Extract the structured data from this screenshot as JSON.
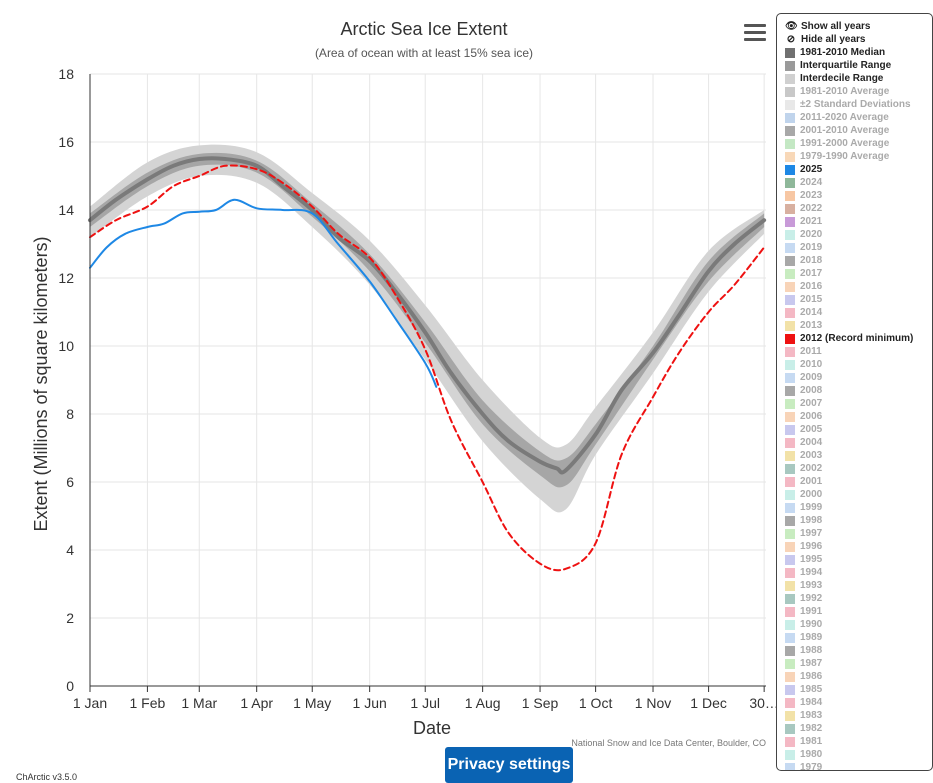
{
  "title": "Arctic Sea Ice Extent",
  "subtitle": "(Area of ocean with at least 15% sea ice)",
  "credit": "National Snow and Ice Data Center, Boulder, CO",
  "version": "ChArctic v3.5.0",
  "privacy_label": "Privacy settings",
  "menu_icon": "hamburger-menu-icon",
  "legend": {
    "show_all": "Show all years",
    "hide_all": "Hide all years",
    "items": [
      {
        "label": "1981-2010 Median",
        "color": "#707070",
        "active": true
      },
      {
        "label": "Interquartile Range",
        "color": "#9a9a9a",
        "active": true
      },
      {
        "label": "Interdecile Range",
        "color": "#d0d0d0",
        "active": true
      },
      {
        "label": "1981-2010 Average",
        "color": "#c8c8c8",
        "active": false
      },
      {
        "label": "±2 Standard Deviations",
        "color": "#e8e8e8",
        "active": false
      },
      {
        "label": "2011-2020 Average",
        "color": "#c0d4ec",
        "active": false
      },
      {
        "label": "2001-2010 Average",
        "color": "#a8a8a8",
        "active": false
      },
      {
        "label": "1991-2000 Average",
        "color": "#c4e8c4",
        "active": false
      },
      {
        "label": "1979-1990 Average",
        "color": "#f8d8b8",
        "active": false
      },
      {
        "label": "2025",
        "color": "#1e88e5",
        "active": true
      },
      {
        "label": "2024",
        "color": "#8fb89a",
        "active": false
      },
      {
        "label": "2023",
        "color": "#f7c7a3",
        "active": false
      },
      {
        "label": "2022",
        "color": "#d8b0a0",
        "active": false
      },
      {
        "label": "2021",
        "color": "#c89ad8",
        "active": false
      },
      {
        "label": "2020",
        "color": "#c8eee8",
        "active": false
      },
      {
        "label": "2019",
        "color": "#c6daf2",
        "active": false
      },
      {
        "label": "2018",
        "color": "#a8a8a8",
        "active": false
      },
      {
        "label": "2017",
        "color": "#c8ecc0",
        "active": false
      },
      {
        "label": "2016",
        "color": "#f8d4b8",
        "active": false
      },
      {
        "label": "2015",
        "color": "#c8c8ee",
        "active": false
      },
      {
        "label": "2014",
        "color": "#f4b8c4",
        "active": false
      },
      {
        "label": "2013",
        "color": "#f2e2a8",
        "active": false
      },
      {
        "label": "2012 (Record minimum)",
        "color": "#ee1111",
        "active": true
      },
      {
        "label": "2011",
        "color": "#f4b8c4",
        "active": false
      },
      {
        "label": "2010",
        "color": "#c8eee8",
        "active": false
      },
      {
        "label": "2009",
        "color": "#c6daf2",
        "active": false
      },
      {
        "label": "2008",
        "color": "#a8a8a8",
        "active": false
      },
      {
        "label": "2007",
        "color": "#c8ecc0",
        "active": false
      },
      {
        "label": "2006",
        "color": "#f8d4b8",
        "active": false
      },
      {
        "label": "2005",
        "color": "#c8c8ee",
        "active": false
      },
      {
        "label": "2004",
        "color": "#f4b8c4",
        "active": false
      },
      {
        "label": "2003",
        "color": "#f2e2a8",
        "active": false
      },
      {
        "label": "2002",
        "color": "#a8c8c0",
        "active": false
      },
      {
        "label": "2001",
        "color": "#f4b8c4",
        "active": false
      },
      {
        "label": "2000",
        "color": "#c8eee8",
        "active": false
      },
      {
        "label": "1999",
        "color": "#c6daf2",
        "active": false
      },
      {
        "label": "1998",
        "color": "#a8a8a8",
        "active": false
      },
      {
        "label": "1997",
        "color": "#c8ecc0",
        "active": false
      },
      {
        "label": "1996",
        "color": "#f8d4b8",
        "active": false
      },
      {
        "label": "1995",
        "color": "#c8c8ee",
        "active": false
      },
      {
        "label": "1994",
        "color": "#f4b8c4",
        "active": false
      },
      {
        "label": "1993",
        "color": "#f2e2a8",
        "active": false
      },
      {
        "label": "1992",
        "color": "#a8c8c0",
        "active": false
      },
      {
        "label": "1991",
        "color": "#f4b8c4",
        "active": false
      },
      {
        "label": "1990",
        "color": "#c8eee8",
        "active": false
      },
      {
        "label": "1989",
        "color": "#c6daf2",
        "active": false
      },
      {
        "label": "1988",
        "color": "#a8a8a8",
        "active": false
      },
      {
        "label": "1987",
        "color": "#c8ecc0",
        "active": false
      },
      {
        "label": "1986",
        "color": "#f8d4b8",
        "active": false
      },
      {
        "label": "1985",
        "color": "#c8c8ee",
        "active": false
      },
      {
        "label": "1984",
        "color": "#f4b8c4",
        "active": false
      },
      {
        "label": "1983",
        "color": "#f2e2a8",
        "active": false
      },
      {
        "label": "1982",
        "color": "#a8c8c0",
        "active": false
      },
      {
        "label": "1981",
        "color": "#f4b8c4",
        "active": false
      },
      {
        "label": "1980",
        "color": "#c8eee8",
        "active": false
      },
      {
        "label": "1979",
        "color": "#c6daf2",
        "active": false
      }
    ]
  },
  "chart_data": {
    "type": "line",
    "title": "Arctic Sea Ice Extent",
    "subtitle": "(Area of ocean with at least 15% sea ice)",
    "xlabel": "Date",
    "ylabel": "Extent (Millions of square kilometers)",
    "ylim": [
      0,
      18
    ],
    "yticks": [
      0,
      2,
      4,
      6,
      8,
      10,
      12,
      14,
      16,
      18
    ],
    "xlim": [
      "Jan 1",
      "Dec 31"
    ],
    "xticks": [
      "1 Jan",
      "1 Feb",
      "1 Mar",
      "1 Apr",
      "1 May",
      "1 Jun",
      "1 Jul",
      "1 Aug",
      "1 Sep",
      "1 Oct",
      "1 Nov",
      "1 Dec",
      "30…"
    ],
    "grid": true,
    "legend_position": "right",
    "series": [
      {
        "name": "1981-2010 Median",
        "color": "#7a7a7a",
        "style": "solid",
        "width": 4,
        "x": [
          "Jan 1",
          "Jan 15",
          "Feb 1",
          "Feb 15",
          "Mar 1",
          "Mar 15",
          "Apr 1",
          "Apr 15",
          "May 1",
          "May 15",
          "Jun 1",
          "Jun 15",
          "Jul 1",
          "Jul 15",
          "Aug 1",
          "Aug 15",
          "Sep 1",
          "Sep 10",
          "Sep 15",
          "Oct 1",
          "Oct 15",
          "Nov 1",
          "Nov 15",
          "Dec 1",
          "Dec 15",
          "Dec 31"
        ],
        "y": [
          13.7,
          14.3,
          14.9,
          15.3,
          15.5,
          15.5,
          15.3,
          14.7,
          14.0,
          13.2,
          12.5,
          11.6,
          10.4,
          9.2,
          8.0,
          7.2,
          6.6,
          6.4,
          6.35,
          7.4,
          8.7,
          9.8,
          10.9,
          12.2,
          13.0,
          13.7
        ]
      },
      {
        "name": "2025",
        "color": "#1e88e5",
        "style": "solid",
        "width": 2,
        "x": [
          "Jan 1",
          "Jan 10",
          "Jan 20",
          "Feb 1",
          "Feb 10",
          "Feb 20",
          "Mar 1",
          "Mar 10",
          "Mar 20",
          "Apr 1",
          "Apr 15",
          "May 1",
          "May 15",
          "Jun 1",
          "Jun 15",
          "Jul 1",
          "Jul 7"
        ],
        "y": [
          12.3,
          12.9,
          13.3,
          13.5,
          13.6,
          13.9,
          13.95,
          14.0,
          14.3,
          14.05,
          14.0,
          13.9,
          13.0,
          11.9,
          10.8,
          9.5,
          8.8
        ]
      },
      {
        "name": "2012 (Record minimum)",
        "color": "#ee1111",
        "style": "dashed",
        "width": 2,
        "x": [
          "Jan 1",
          "Jan 15",
          "Feb 1",
          "Feb 15",
          "Mar 1",
          "Mar 15",
          "Apr 1",
          "Apr 15",
          "May 1",
          "May 15",
          "Jun 1",
          "Jun 15",
          "Jul 1",
          "Jul 15",
          "Aug 1",
          "Aug 15",
          "Sep 1",
          "Sep 15",
          "Oct 1",
          "Oct 15",
          "Nov 1",
          "Nov 15",
          "Dec 1",
          "Dec 15",
          "Dec 31"
        ],
        "y": [
          13.2,
          13.7,
          14.1,
          14.7,
          15.0,
          15.3,
          15.2,
          14.8,
          14.1,
          13.3,
          12.6,
          11.5,
          9.9,
          7.8,
          6.0,
          4.5,
          3.6,
          3.45,
          4.2,
          6.8,
          8.5,
          9.8,
          11.0,
          11.8,
          12.9
        ]
      }
    ],
    "bands": [
      {
        "name": "Interdecile Range",
        "color": "#d4d4d4",
        "x": [
          "Jan 1",
          "Feb 1",
          "Mar 1",
          "Apr 1",
          "May 1",
          "Jun 1",
          "Jul 1",
          "Aug 1",
          "Sep 1",
          "Sep 15",
          "Oct 1",
          "Nov 1",
          "Dec 1",
          "Dec 31"
        ],
        "low": [
          13.2,
          14.4,
          15.0,
          14.8,
          13.5,
          11.8,
          9.6,
          7.2,
          5.5,
          5.2,
          6.8,
          9.2,
          11.6,
          13.3
        ],
        "high": [
          14.1,
          15.4,
          15.9,
          15.7,
          14.5,
          13.1,
          11.2,
          9.0,
          7.3,
          7.1,
          8.2,
          10.4,
          12.8,
          14.0
        ]
      },
      {
        "name": "Interquartile Range",
        "color": "#a6a6a6",
        "x": [
          "Jan 1",
          "Feb 1",
          "Mar 1",
          "Apr 1",
          "May 1",
          "Jun 1",
          "Jul 1",
          "Aug 1",
          "Sep 1",
          "Sep 15",
          "Oct 1",
          "Nov 1",
          "Dec 1",
          "Dec 31"
        ],
        "low": [
          13.5,
          14.7,
          15.3,
          15.1,
          13.8,
          12.2,
          10.1,
          7.7,
          6.2,
          5.9,
          7.1,
          9.6,
          11.9,
          13.5
        ],
        "high": [
          13.9,
          15.1,
          15.65,
          15.45,
          14.2,
          12.7,
          10.7,
          8.4,
          6.9,
          6.7,
          7.7,
          10.0,
          12.5,
          13.9
        ]
      }
    ]
  }
}
